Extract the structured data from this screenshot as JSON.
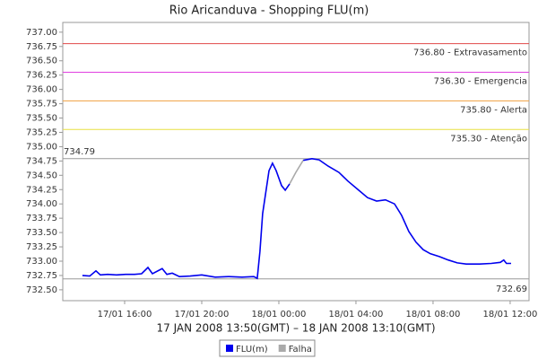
{
  "chart_data": {
    "type": "line",
    "title": "Rio Aricanduva - Shopping FLU(m)",
    "x_label": "17 JAN 2008 13:50(GMT) – 18 JAN 2008 13:10(GMT)",
    "x": [
      13.81,
      14.19,
      14.51,
      14.74,
      15.12,
      15.58,
      16.05,
      16.51,
      16.88,
      17.21,
      17.44,
      17.95,
      18.19,
      18.47,
      18.84,
      19.4,
      20.0,
      20.7,
      21.4,
      22.09,
      22.7,
      22.88,
      23.02,
      23.16,
      23.49,
      23.67,
      23.86,
      24.14,
      24.33,
      24.56,
      24.88,
      25.26,
      25.72,
      26.09,
      26.56,
      27.12,
      27.58,
      28.14,
      28.6,
      29.07,
      29.53,
      30.0,
      30.37,
      30.74,
      31.12,
      31.49,
      31.86,
      32.33,
      32.79,
      33.26,
      33.72,
      34.42,
      35.02,
      35.49,
      35.67,
      35.81,
      36.05
    ],
    "series": [
      {
        "name": "FLU(m)",
        "color": "#0000ee",
        "values": [
          732.75,
          732.74,
          732.83,
          732.76,
          732.77,
          732.76,
          732.77,
          732.77,
          732.78,
          732.89,
          732.78,
          732.87,
          732.77,
          732.79,
          732.73,
          732.74,
          732.76,
          732.72,
          732.73,
          732.72,
          732.73,
          732.7,
          733.17,
          733.83,
          734.58,
          734.71,
          734.58,
          734.32,
          734.24,
          734.35,
          null,
          734.76,
          734.79,
          734.77,
          734.66,
          734.55,
          734.4,
          734.24,
          734.11,
          734.05,
          734.07,
          734.0,
          733.8,
          733.52,
          733.33,
          733.2,
          733.13,
          733.08,
          733.02,
          732.97,
          732.95,
          732.95,
          732.96,
          732.98,
          733.02,
          732.96,
          732.96
        ]
      },
      {
        "name": "Falha",
        "color": "#aaaaaa",
        "values": [
          null,
          null,
          null,
          null,
          null,
          null,
          null,
          null,
          null,
          null,
          null,
          null,
          null,
          null,
          null,
          null,
          null,
          null,
          null,
          null,
          null,
          null,
          null,
          null,
          null,
          null,
          null,
          null,
          null,
          734.35,
          734.55,
          734.76,
          null,
          null,
          null,
          null,
          null,
          null,
          null,
          null,
          null,
          null,
          null,
          null,
          null,
          null,
          null,
          null,
          null,
          null,
          null,
          null,
          null,
          null,
          null,
          null,
          null
        ]
      }
    ],
    "xlim": [
      12.79,
      36.98
    ],
    "xticks": [
      {
        "value": 16,
        "label": "17/01 16:00"
      },
      {
        "value": 20,
        "label": "17/01 20:00"
      },
      {
        "value": 24,
        "label": "18/01 00:00"
      },
      {
        "value": 28,
        "label": "18/01 04:00"
      },
      {
        "value": 32,
        "label": "18/01 08:00"
      },
      {
        "value": 36,
        "label": "18/01 12:00"
      }
    ],
    "ylim": [
      732.31,
      737.17
    ],
    "yticks": [
      {
        "value": 732.5,
        "label": "732.50"
      },
      {
        "value": 732.75,
        "label": "732.75"
      },
      {
        "value": 733,
        "label": "733.00"
      },
      {
        "value": 733.25,
        "label": "733.25"
      },
      {
        "value": 733.5,
        "label": "733.50"
      },
      {
        "value": 733.75,
        "label": "733.75"
      },
      {
        "value": 734,
        "label": "734.00"
      },
      {
        "value": 734.25,
        "label": "734.25"
      },
      {
        "value": 734.5,
        "label": "734.50"
      },
      {
        "value": 734.75,
        "label": "734.75"
      },
      {
        "value": 735,
        "label": "735.00"
      },
      {
        "value": 735.25,
        "label": "735.25"
      },
      {
        "value": 735.5,
        "label": "735.50"
      },
      {
        "value": 735.75,
        "label": "735.75"
      },
      {
        "value": 736,
        "label": "736.00"
      },
      {
        "value": 736.25,
        "label": "736.25"
      },
      {
        "value": 736.5,
        "label": "736.50"
      },
      {
        "value": 736.75,
        "label": "736.75"
      },
      {
        "value": 737,
        "label": "737.00"
      }
    ],
    "thresholds": [
      {
        "value": 736.8,
        "label": "736.80 - Extravasamento",
        "color": "#e04848"
      },
      {
        "value": 736.3,
        "label": "736.30 - Emergencia",
        "color": "#e040e0"
      },
      {
        "value": 735.8,
        "label": "735.80 - Alerta",
        "color": "#f0a040"
      },
      {
        "value": 735.3,
        "label": "735.30 - Atenção",
        "color": "#e8e040"
      }
    ],
    "max_line": {
      "value": 734.79,
      "label": "734.79",
      "color": "#999999"
    },
    "min_line": {
      "value": 732.69,
      "label": "732.69",
      "color": "#999999"
    }
  }
}
